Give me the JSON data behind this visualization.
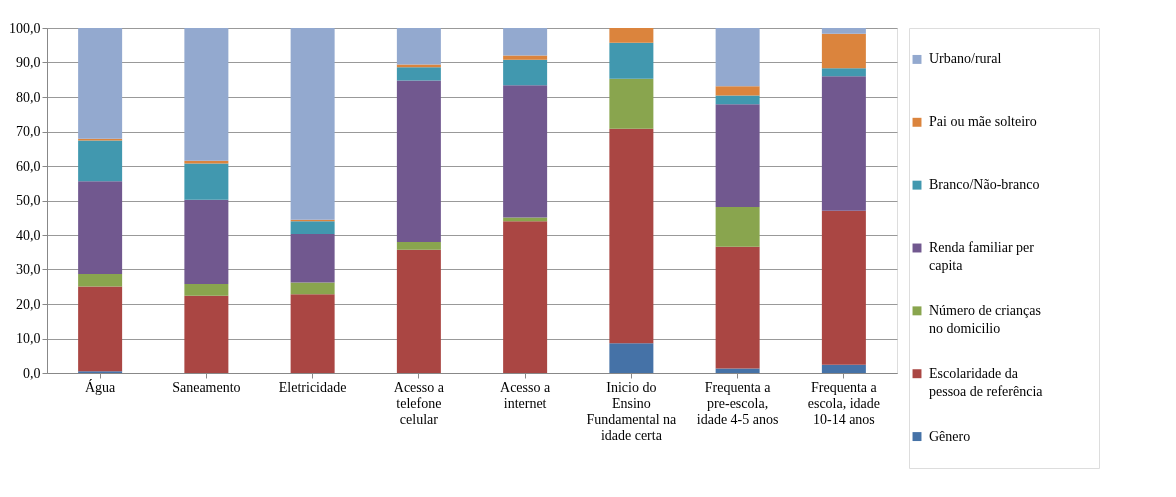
{
  "chart_data": {
    "type": "bar",
    "stacked": true,
    "categories": [
      "Água",
      "Saneamento",
      "Eletricidade",
      "Acesso a telefone celular",
      "Acesso a internet",
      "Inicio do Ensino Fundamental na idade certa",
      "Frequenta a pre-escola, idade 4-5 anos",
      "Frequenta a escola, idade 10-14 anos"
    ],
    "series": [
      {
        "name": "Gênero",
        "color": "#4572a7",
        "values": [
          0.5,
          0,
          0,
          0,
          0,
          8.6,
          1.3,
          2.4
        ]
      },
      {
        "name": "Escolaridade da pessoa de referência",
        "color": "#aa4643",
        "values": [
          24.6,
          22.4,
          22.8,
          35.7,
          44.0,
          62.2,
          35.3,
          44.6
        ]
      },
      {
        "name": "Número de crianças no domicilio",
        "color": "#89a54e",
        "values": [
          3.6,
          3.4,
          3.4,
          2.3,
          1.1,
          14.5,
          11.5,
          0
        ]
      },
      {
        "name": "Renda familiar per capita",
        "color": "#71588f",
        "values": [
          26.9,
          24.4,
          14.1,
          46.8,
          38.3,
          0,
          29.8,
          39.0
        ]
      },
      {
        "name": "Branco/Não-branco",
        "color": "#4198af",
        "values": [
          11.8,
          10.5,
          3.7,
          3.8,
          7.4,
          10.4,
          2.5,
          2.3
        ]
      },
      {
        "name": "Pai ou mãe solteiro",
        "color": "#db843d",
        "values": [
          0.5,
          0.8,
          0.4,
          0.8,
          1.2,
          4.3,
          2.7,
          10.0
        ]
      },
      {
        "name": "Urbano/rural",
        "color": "#93a9cf",
        "values": [
          32.1,
          38.5,
          55.6,
          10.6,
          8.0,
          0,
          16.9,
          1.7
        ]
      }
    ],
    "ylim": [
      0,
      100
    ],
    "yticks": [
      {
        "value": 0,
        "label": "0,0"
      },
      {
        "value": 10,
        "label": "10,0"
      },
      {
        "value": 20,
        "label": "20,0"
      },
      {
        "value": 30,
        "label": "30,0"
      },
      {
        "value": 40,
        "label": "40,0"
      },
      {
        "value": 50,
        "label": "50,0"
      },
      {
        "value": 60,
        "label": "60,0"
      },
      {
        "value": 70,
        "label": "70,0"
      },
      {
        "value": 80,
        "label": "80,0"
      },
      {
        "value": 90,
        "label": "90,0"
      },
      {
        "value": 100,
        "label": "100,0"
      }
    ],
    "grid": "y",
    "legend": "right"
  }
}
